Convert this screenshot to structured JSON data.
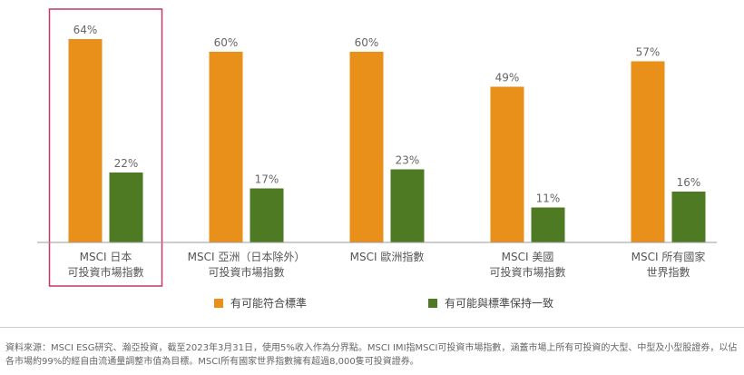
{
  "chart_data": {
    "type": "bar",
    "categories": [
      [
        "MSCI 日本",
        "可投資市場指數"
      ],
      [
        "MSCI 亞洲（日本除外）",
        "可投資市場指數"
      ],
      [
        "MSCI 歐洲指數"
      ],
      [
        "MSCI 美國",
        "可投資市場指數"
      ],
      [
        "MSCI 所有國家",
        "世界指數"
      ]
    ],
    "series": [
      {
        "name": "有可能符合標準",
        "color": "#E8901A",
        "values": [
          64,
          60,
          60,
          49,
          57
        ]
      },
      {
        "name": "有可能與標準保持一致",
        "color": "#4E7A23",
        "values": [
          22,
          17,
          23,
          11,
          16
        ]
      }
    ],
    "value_suffix": "%",
    "ylim": [
      0,
      100
    ],
    "grid": false,
    "legend_position": "bottom",
    "highlight_category_index": 0,
    "highlight_color": "#C2386B",
    "axis_color": "#999999"
  },
  "footnote": "資料來源：MSCI ESG研究、瀚亞投資，截至2023年3月31日，使用5%收入作為分界點。MSCI IMI指MSCI可投資市場指數，涵蓋市場上所有可投資的大型、中型及小型股證券，以佔各市場約99%的經自由流通量調整市值為目標。MSCI所有國家世界指數擁有超過8,000隻可投資證券。"
}
